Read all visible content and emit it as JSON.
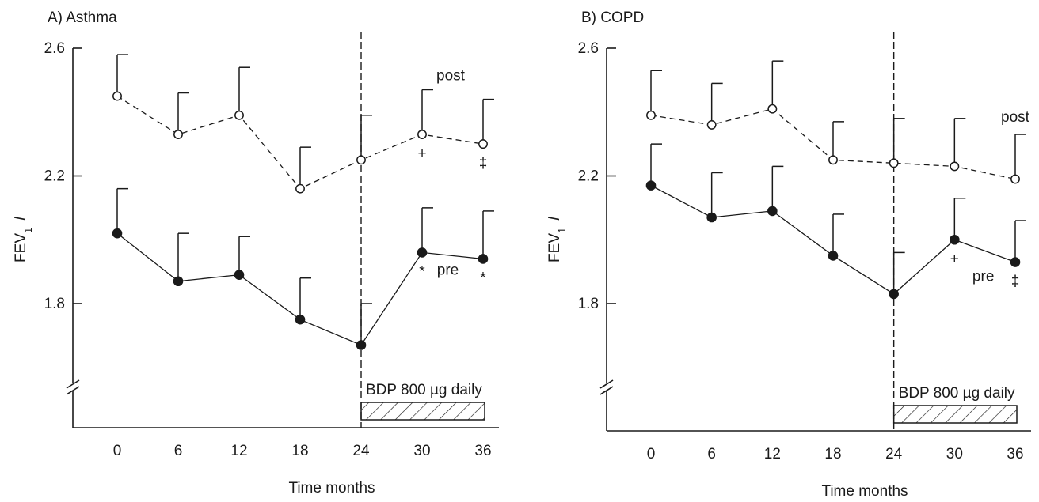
{
  "chart_data": [
    {
      "type": "line",
      "title": "A) Asthma",
      "xlabel": "Time months",
      "ylabel_main": "FEV",
      "ylabel_sub": "1",
      "ylabel_unit": "l",
      "yticks": [
        1.8,
        2.2,
        2.6
      ],
      "ytick_labels": [
        "1.8",
        "2.2",
        "2.6"
      ],
      "xticks": [
        0,
        6,
        12,
        18,
        24,
        30,
        36
      ],
      "xtick_labels": [
        "0",
        "6",
        "12",
        "18",
        "24",
        "30",
        "36"
      ],
      "ylim": [
        1.4,
        2.6
      ],
      "xlim": [
        -4,
        38
      ],
      "axis_break": true,
      "vline_x": 24,
      "treatment": {
        "label": "BDP 800 µg daily",
        "x_start": 24,
        "x_end": 36
      },
      "x": [
        0,
        6,
        12,
        18,
        24,
        30,
        36
      ],
      "series": [
        {
          "name": "post",
          "marker": "open-circle",
          "line": "dashed",
          "values": [
            2.45,
            2.33,
            2.39,
            2.16,
            2.25,
            2.33,
            2.3
          ],
          "error": [
            0.13,
            0.13,
            0.15,
            0.13,
            0.14,
            0.14,
            0.14
          ],
          "markers": [
            "",
            "",
            "",
            "",
            "",
            "+",
            "‡"
          ]
        },
        {
          "name": "pre",
          "marker": "filled-circle",
          "line": "solid",
          "values": [
            2.02,
            1.87,
            1.89,
            1.75,
            1.67,
            1.96,
            1.94
          ],
          "error": [
            0.14,
            0.15,
            0.12,
            0.13,
            0.13,
            0.14,
            0.15
          ],
          "markers": [
            "",
            "",
            "",
            "",
            "",
            "*",
            "*"
          ]
        }
      ]
    },
    {
      "type": "line",
      "title": "B) COPD",
      "xlabel": "Time months",
      "ylabel_main": "FEV",
      "ylabel_sub": "1",
      "ylabel_unit": "l",
      "yticks": [
        1.8,
        2.2,
        2.6
      ],
      "ytick_labels": [
        "1.8",
        "2.2",
        "2.6"
      ],
      "xticks": [
        0,
        6,
        12,
        18,
        24,
        30,
        36
      ],
      "xtick_labels": [
        "0",
        "6",
        "12",
        "18",
        "24",
        "30",
        "36"
      ],
      "ylim": [
        1.4,
        2.6
      ],
      "xlim": [
        -4,
        38
      ],
      "axis_break": true,
      "vline_x": 24,
      "treatment": {
        "label": "BDP 800 µg daily",
        "x_start": 24,
        "x_end": 36
      },
      "x": [
        0,
        6,
        12,
        18,
        24,
        30,
        36
      ],
      "series": [
        {
          "name": "post",
          "marker": "open-circle",
          "line": "dashed",
          "values": [
            2.39,
            2.36,
            2.41,
            2.25,
            2.24,
            2.23,
            2.19
          ],
          "error": [
            0.14,
            0.13,
            0.15,
            0.12,
            0.14,
            0.15,
            0.14
          ],
          "markers": [
            "",
            "",
            "",
            "",
            "",
            "",
            ""
          ]
        },
        {
          "name": "pre",
          "marker": "filled-circle",
          "line": "solid",
          "values": [
            2.17,
            2.07,
            2.09,
            1.95,
            1.83,
            2.0,
            1.93
          ],
          "error": [
            0.13,
            0.14,
            0.14,
            0.13,
            0.13,
            0.13,
            0.13
          ],
          "markers": [
            "",
            "",
            "",
            "",
            "",
            "+",
            "‡"
          ]
        }
      ]
    }
  ]
}
